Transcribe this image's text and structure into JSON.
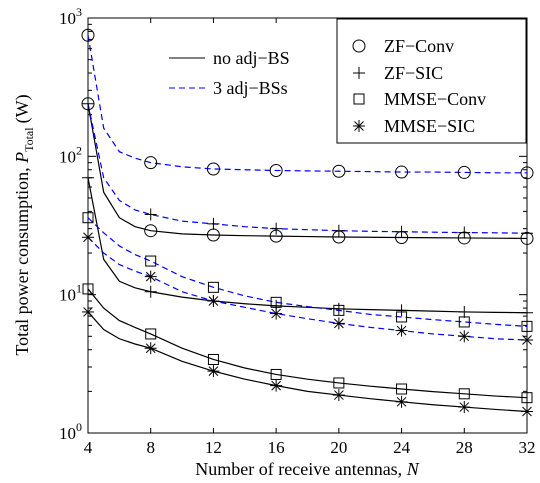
{
  "chart_data": {
    "type": "line",
    "xlabel_text": "Number of receive antennas, ",
    "xlabel_var": "N",
    "ylabel_text": "Total power consumption, ",
    "ylabel_var": "P",
    "ylabel_sub": "Total",
    "ylabel_unit": "(W)",
    "x_ticks": [
      4,
      8,
      12,
      16,
      20,
      24,
      28,
      32
    ],
    "xlim": [
      4,
      32
    ],
    "ylim": [
      1,
      1000
    ],
    "y_scale": "log",
    "y_ticks": [
      {
        "base": "10",
        "exp": "0",
        "value": 1
      },
      {
        "base": "10",
        "exp": "1",
        "value": 10
      },
      {
        "base": "10",
        "exp": "2",
        "value": 100
      },
      {
        "base": "10",
        "exp": "3",
        "value": 1000
      }
    ],
    "grid": false,
    "legend_lines": {
      "placement": "top-center",
      "items": [
        {
          "label": "no adj−BS",
          "style": "solid"
        },
        {
          "label": "3 adj−BSs",
          "style": "dashed"
        }
      ]
    },
    "legend_markers": {
      "placement": "top-right",
      "items": [
        {
          "label": "ZF−Conv",
          "marker": "circle"
        },
        {
          "label": "ZF−SIC",
          "marker": "plus"
        },
        {
          "label": "MMSE−Conv",
          "marker": "square"
        },
        {
          "label": "MMSE−SIC",
          "marker": "star"
        }
      ]
    },
    "colors": {
      "solid": "#000000",
      "dashed": "#0000ff",
      "markers": "#000000"
    },
    "x": [
      4,
      5,
      6,
      7,
      8,
      10,
      12,
      14,
      16,
      18,
      20,
      22,
      24,
      26,
      28,
      30,
      32
    ],
    "series": [
      {
        "scheme": "ZF-Conv",
        "line": "dashed",
        "marker": "circle",
        "values": [
          750,
          160,
          108,
          97,
          90,
          84,
          81,
          80,
          79,
          78.5,
          78,
          77.5,
          77,
          77,
          76.5,
          76,
          76
        ]
      },
      {
        "scheme": "ZF-Conv",
        "line": "solid",
        "marker": "circle",
        "values": [
          240,
          55,
          36,
          31,
          29,
          27.5,
          27,
          26.7,
          26.5,
          26.3,
          26.1,
          26,
          25.9,
          25.8,
          25.7,
          25.6,
          25.5
        ]
      },
      {
        "scheme": "ZF-SIC",
        "line": "dashed",
        "marker": "plus",
        "values": [
          240,
          70,
          48,
          41,
          38,
          34,
          32.5,
          31,
          30,
          29.5,
          29,
          28.7,
          28.5,
          28.3,
          28.1,
          28,
          27.8
        ]
      },
      {
        "scheme": "ZF-SIC",
        "line": "solid",
        "marker": "plus",
        "values": [
          70,
          18,
          12.5,
          11.2,
          10.5,
          9.6,
          9,
          8.6,
          8.3,
          8.1,
          7.9,
          7.8,
          7.7,
          7.6,
          7.5,
          7.45,
          7.4
        ]
      },
      {
        "scheme": "MMSE-Conv",
        "line": "dashed",
        "marker": "square",
        "values": [
          36,
          28,
          22.5,
          19.5,
          17.5,
          13.5,
          11.3,
          9.8,
          8.8,
          8.2,
          7.7,
          7.2,
          6.9,
          6.6,
          6.35,
          6.1,
          5.9
        ]
      },
      {
        "scheme": "MMSE-SIC",
        "line": "dashed",
        "marker": "star",
        "values": [
          26,
          20,
          16.5,
          14.8,
          13.5,
          10.5,
          9,
          8.1,
          7.3,
          6.7,
          6.2,
          5.8,
          5.5,
          5.2,
          5.0,
          4.8,
          4.7
        ]
      },
      {
        "scheme": "MMSE-Conv",
        "line": "solid",
        "marker": "square",
        "values": [
          11,
          8,
          6.5,
          5.8,
          5.2,
          4.1,
          3.4,
          2.95,
          2.65,
          2.45,
          2.3,
          2.18,
          2.08,
          1.99,
          1.92,
          1.85,
          1.8
        ]
      },
      {
        "scheme": "MMSE-SIC",
        "line": "solid",
        "marker": "star",
        "values": [
          7.5,
          5.6,
          4.8,
          4.4,
          4.1,
          3.3,
          2.8,
          2.45,
          2.2,
          2.0,
          1.88,
          1.77,
          1.68,
          1.6,
          1.54,
          1.48,
          1.43
        ]
      }
    ]
  }
}
